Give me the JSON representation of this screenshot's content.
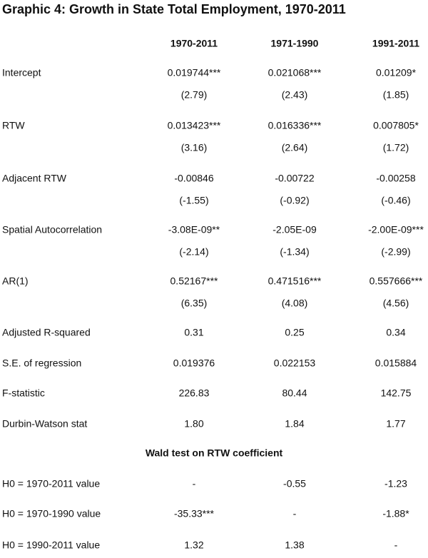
{
  "title": "Graphic 4: Growth in State Total Employment, 1970-2011",
  "columns": [
    "1970-2011",
    "1971-1990",
    "1991-2011"
  ],
  "rows": [
    {
      "label": "Intercept",
      "cells": [
        "0.019744***",
        "0.021068***",
        "0.01209*"
      ],
      "tstats": [
        "(2.79)",
        "(2.43)",
        "(1.85)"
      ]
    },
    {
      "label": "RTW",
      "cells": [
        "0.013423***",
        "0.016336***",
        "0.007805*"
      ],
      "tstats": [
        "(3.16)",
        "(2.64)",
        "(1.72)"
      ]
    },
    {
      "label": "Adjacent RTW",
      "cells": [
        "-0.00846",
        "-0.00722",
        "-0.00258"
      ],
      "tstats": [
        "(-1.55)",
        "(-0.92)",
        "(-0.46)"
      ]
    },
    {
      "label": "Spatial Autocorrelation",
      "cells": [
        "-3.08E-09**",
        "-2.05E-09",
        "-2.00E-09***"
      ],
      "tstats": [
        "(-2.14)",
        "(-1.34)",
        "(-2.99)"
      ]
    },
    {
      "label": "AR(1)",
      "cells": [
        "0.52167***",
        "0.471516***",
        "0.557666***"
      ],
      "tstats": [
        "(6.35)",
        "(4.08)",
        "(4.56)"
      ]
    },
    {
      "label": "Adjusted R-squared",
      "cells": [
        "0.31",
        "0.25",
        "0.34"
      ]
    },
    {
      "label": "S.E. of regression",
      "cells": [
        "0.019376",
        "0.022153",
        "0.015884"
      ]
    },
    {
      "label": "F-statistic",
      "cells": [
        "226.83",
        "80.44",
        "142.75"
      ]
    },
    {
      "label": "Durbin-Watson stat",
      "cells": [
        "1.80",
        "1.84",
        "1.77"
      ]
    }
  ],
  "wald": {
    "title": "Wald test on RTW coefficient",
    "rows": [
      {
        "label": "H0 = 1970-2011 value",
        "cells": [
          "-",
          "-0.55",
          "-1.23"
        ]
      },
      {
        "label": "H0 = 1970-1990 value",
        "cells": [
          "-35.33***",
          "-",
          "-1.88*"
        ]
      },
      {
        "label": "H0 = 1990-2011 value",
        "cells": [
          "1.32",
          "1.38",
          "-"
        ]
      }
    ]
  }
}
